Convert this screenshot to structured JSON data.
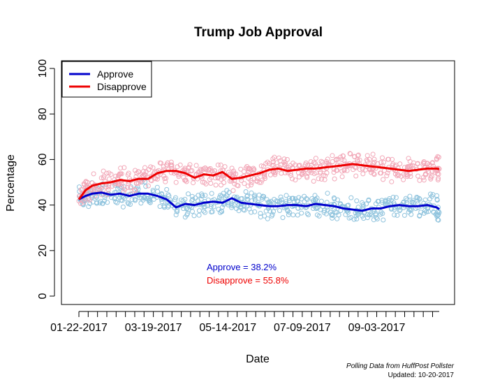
{
  "chart_data": {
    "type": "line",
    "title": "Trump Job Approval",
    "xlabel": "Date",
    "ylabel": "Percentage",
    "ylim": [
      0,
      100
    ],
    "y_ticks": [
      "0",
      "20",
      "40",
      "60",
      "80",
      "100"
    ],
    "x_tick_labels": [
      "01-22-2017",
      "03-19-2017",
      "05-14-2017",
      "07-09-2017",
      "09-03-2017"
    ],
    "xlim": [
      "2017-01-20",
      "2017-10-20"
    ],
    "legend": {
      "position": "top-left",
      "entries": [
        "Approve",
        "Disapprove"
      ]
    },
    "colors": {
      "approve": "#0000cc",
      "disapprove": "#ee0000",
      "approve_points": "#8fc3dd",
      "disapprove_points": "#f2a8b8"
    },
    "series": [
      {
        "name": "Approve",
        "x": [
          "2017-01-22",
          "2017-01-27",
          "2017-02-01",
          "2017-02-08",
          "2017-02-15",
          "2017-02-22",
          "2017-03-01",
          "2017-03-08",
          "2017-03-15",
          "2017-03-22",
          "2017-03-29",
          "2017-04-05",
          "2017-04-12",
          "2017-04-19",
          "2017-04-26",
          "2017-05-03",
          "2017-05-10",
          "2017-05-17",
          "2017-05-24",
          "2017-05-31",
          "2017-06-07",
          "2017-06-14",
          "2017-06-21",
          "2017-06-28",
          "2017-07-05",
          "2017-07-12",
          "2017-07-19",
          "2017-07-26",
          "2017-08-02",
          "2017-08-09",
          "2017-08-16",
          "2017-08-23",
          "2017-08-30",
          "2017-09-06",
          "2017-09-13",
          "2017-09-20",
          "2017-09-27",
          "2017-10-04",
          "2017-10-11",
          "2017-10-18",
          "2017-10-20"
        ],
        "values": [
          42.5,
          44,
          45,
          45.5,
          44.5,
          45,
          44,
          45,
          45,
          44,
          42.5,
          39,
          40.5,
          40,
          41,
          41.5,
          41,
          43,
          41,
          40.5,
          40,
          39.5,
          39.5,
          40,
          40,
          39.5,
          40.5,
          40,
          39.5,
          38.5,
          38,
          37.5,
          38.5,
          38.5,
          39.5,
          40,
          39.5,
          39.5,
          40,
          39,
          38.2
        ]
      },
      {
        "name": "Disapprove",
        "x": [
          "2017-01-22",
          "2017-01-27",
          "2017-02-01",
          "2017-02-08",
          "2017-02-15",
          "2017-02-22",
          "2017-03-01",
          "2017-03-08",
          "2017-03-15",
          "2017-03-22",
          "2017-03-29",
          "2017-04-05",
          "2017-04-12",
          "2017-04-19",
          "2017-04-26",
          "2017-05-03",
          "2017-05-10",
          "2017-05-17",
          "2017-05-24",
          "2017-05-31",
          "2017-06-07",
          "2017-06-14",
          "2017-06-21",
          "2017-06-28",
          "2017-07-05",
          "2017-07-12",
          "2017-07-19",
          "2017-07-26",
          "2017-08-02",
          "2017-08-09",
          "2017-08-16",
          "2017-08-23",
          "2017-08-30",
          "2017-09-06",
          "2017-09-13",
          "2017-09-20",
          "2017-09-27",
          "2017-10-04",
          "2017-10-11",
          "2017-10-18",
          "2017-10-20"
        ],
        "values": [
          42.5,
          46.5,
          48.5,
          49.5,
          50,
          51,
          50.5,
          51.5,
          51.5,
          54,
          55,
          55,
          54,
          52,
          53.5,
          53,
          54.5,
          51.5,
          52,
          53,
          54,
          55.5,
          56,
          55,
          55.5,
          56,
          56,
          56.5,
          57,
          57.5,
          58,
          57.5,
          57,
          56.5,
          56,
          55.5,
          55,
          55.5,
          56,
          56,
          55.8
        ]
      }
    ],
    "annotations": {
      "approve_text": "Approve = 38.2%",
      "disapprove_text": "Disapprove = 55.8%"
    },
    "footer": {
      "source": "Polling Data from HuffPost Pollster",
      "updated": "Updated: 10-20-2017"
    }
  }
}
